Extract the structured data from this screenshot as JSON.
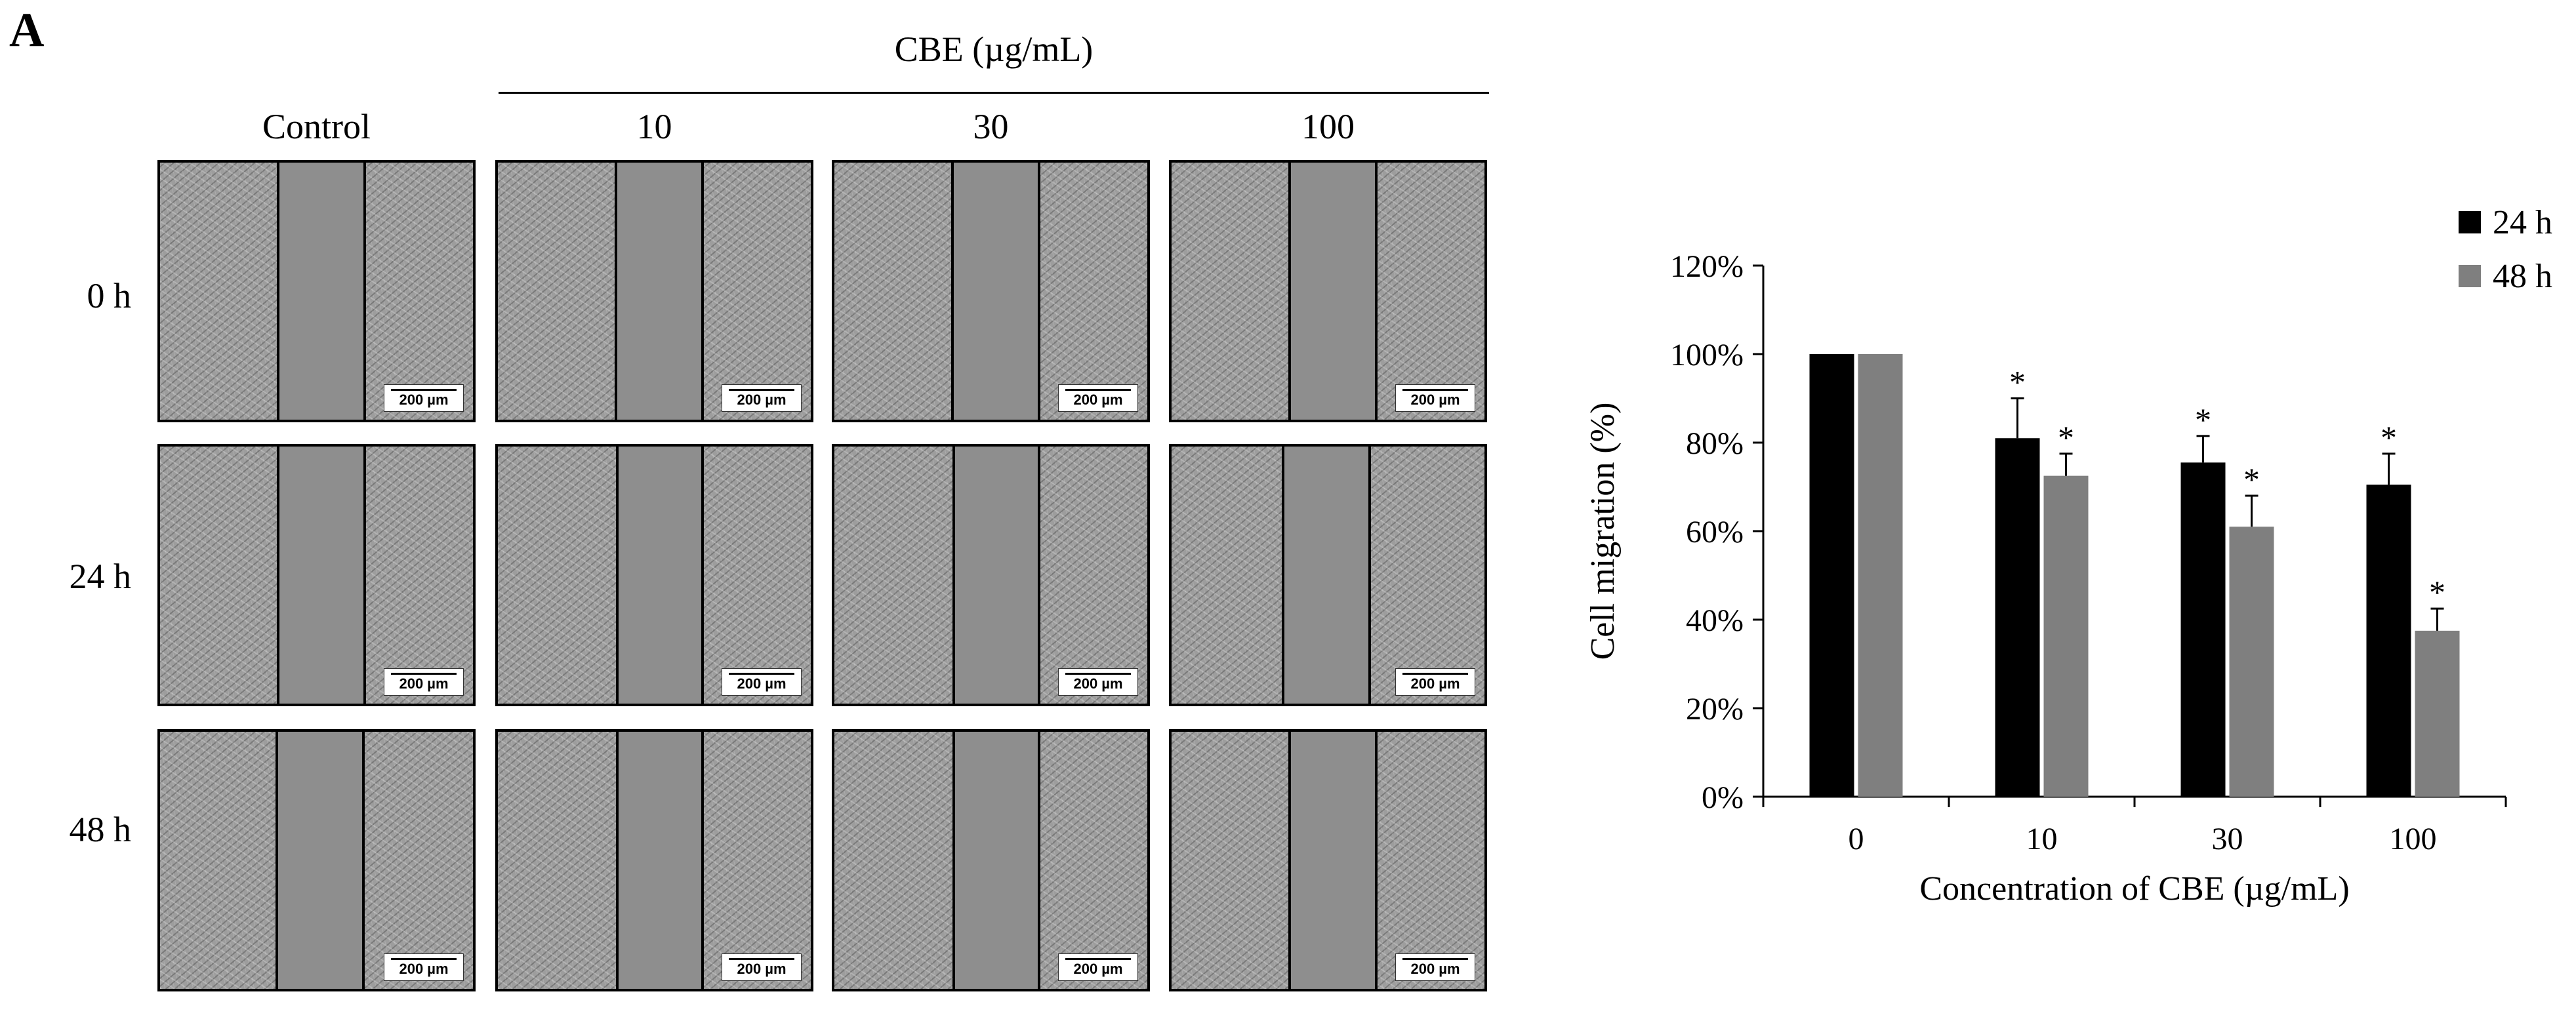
{
  "panel_label": "A",
  "micrographs": {
    "group_title": "CBE (µg/mL)",
    "columns": [
      "Control",
      "10",
      "30",
      "100"
    ],
    "rows": [
      "0 h",
      "24 h",
      "48 h"
    ],
    "scale_bar": "200 µm"
  },
  "chart_data": {
    "type": "bar",
    "categories": [
      "0",
      "10",
      "30",
      "100"
    ],
    "series": [
      {
        "name": "24 h",
        "color": "#000000",
        "values": [
          1.0,
          0.81,
          0.755,
          0.705
        ],
        "error": [
          0.0,
          0.09,
          0.06,
          0.07
        ]
      },
      {
        "name": "48 h",
        "color": "#7f7f7f",
        "values": [
          1.0,
          0.725,
          0.61,
          0.375
        ],
        "error": [
          0.0,
          0.05,
          0.07,
          0.05
        ]
      }
    ],
    "significance": [
      [
        "",
        "*",
        "*",
        "*"
      ],
      [
        "",
        "*",
        "*",
        "*"
      ]
    ],
    "ylim": [
      0,
      1.2
    ],
    "yticks": [
      "0%",
      "20%",
      "40%",
      "60%",
      "80%",
      "100%",
      "120%"
    ],
    "ylabel": "Cell migration (%)",
    "xlabel": "Concentration of CBE (µg/mL)",
    "legend_position": "top-right",
    "grid": false
  }
}
